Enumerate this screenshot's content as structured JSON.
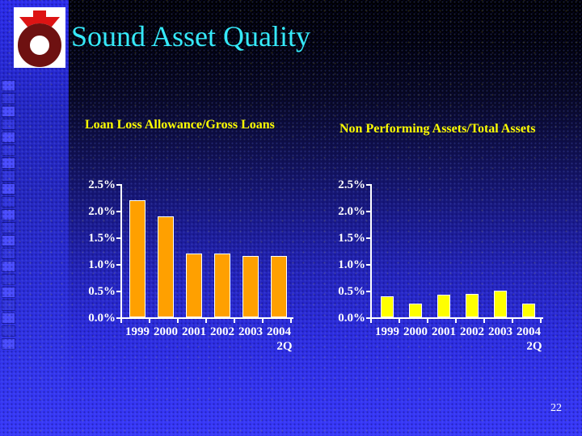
{
  "slide": {
    "title": "Sound Asset Quality",
    "page_number": "22"
  },
  "icons": {
    "logo": "bank-ring-emblem"
  },
  "colors": {
    "title_text": "#35e9f9",
    "chart_title_text": "#ffff00",
    "axis_and_labels": "#ffffff",
    "left_chart_bar": "#ffa000",
    "right_chart_bar": "#ffff00",
    "background_top": "#000000",
    "background_bottom": "#3838fa",
    "sidebar_blue": "#2b2bec",
    "logo_red": "#dd1414",
    "logo_maroon": "#6e1111"
  },
  "chart_data": [
    {
      "type": "bar",
      "title": "Loan Loss Allowance/Gross Loans",
      "categories": [
        "1999",
        "2000",
        "2001",
        "2002",
        "2003",
        "2004 2Q"
      ],
      "x_labels": [
        "1999",
        "2000",
        "2001",
        "2002",
        "2003",
        "2004"
      ],
      "x_sublabel": "2Q",
      "values": [
        2.2,
        1.9,
        1.2,
        1.2,
        1.15,
        1.15
      ],
      "unit": "%",
      "ylabel": "",
      "xlabel": "",
      "ylim": [
        0,
        2.5
      ],
      "ytick_labels": [
        "2.5%",
        "2.0%",
        "1.5%",
        "1.0%",
        "0.5%",
        "0.0%"
      ],
      "bar_color": "#ffa000",
      "grid": false,
      "legend": false
    },
    {
      "type": "bar",
      "title": "Non Performing Assets/Total Assets",
      "categories": [
        "1999",
        "2000",
        "2001",
        "2002",
        "2003",
        "2004 2Q"
      ],
      "x_labels": [
        "1999",
        "2000",
        "2001",
        "2002",
        "2003",
        "2004"
      ],
      "x_sublabel": "2Q",
      "values": [
        0.4,
        0.25,
        0.43,
        0.44,
        0.5,
        0.25
      ],
      "unit": "%",
      "ylabel": "",
      "xlabel": "",
      "ylim": [
        0,
        2.5
      ],
      "ytick_labels": [
        "2.5%",
        "2.0%",
        "1.5%",
        "1.0%",
        "0.5%",
        "0.0%"
      ],
      "bar_color": "#ffff00",
      "grid": false,
      "legend": false
    }
  ]
}
